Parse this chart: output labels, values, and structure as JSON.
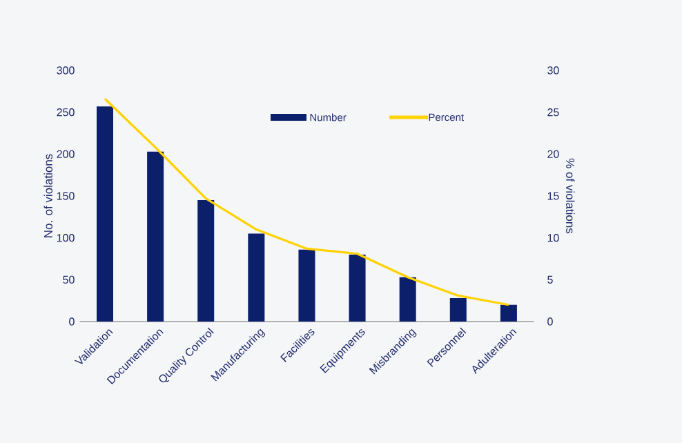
{
  "chart_data": {
    "type": "bar",
    "ylabel": "No. of violations",
    "y2label": "% of violations",
    "categories": [
      "Validation",
      "Documentation",
      "Quality Control",
      "Manufacturing",
      "Facilities",
      "Equipments",
      "Misbranding",
      "Personnel",
      "Adulteration"
    ],
    "series": [
      {
        "name": "Number",
        "color": "#0b1f6b",
        "values": [
          257,
          203,
          145,
          105,
          86,
          80,
          53,
          28,
          20
        ]
      },
      {
        "name": "Percent",
        "type": "line",
        "axis": "y2",
        "color": "#ffd200",
        "values": [
          26.6,
          20.8,
          14.7,
          11.0,
          8.7,
          8.1,
          5.3,
          3.1,
          2.0
        ]
      }
    ],
    "ylim": [
      0,
      300
    ],
    "yticks": [
      0,
      50,
      100,
      150,
      200,
      250,
      300
    ],
    "y2lim": [
      0,
      30
    ],
    "y2ticks": [
      0,
      5,
      10,
      15,
      20,
      25,
      30
    ],
    "grid": false,
    "legend": "top",
    "marker": "none",
    "line_style": "solid"
  }
}
